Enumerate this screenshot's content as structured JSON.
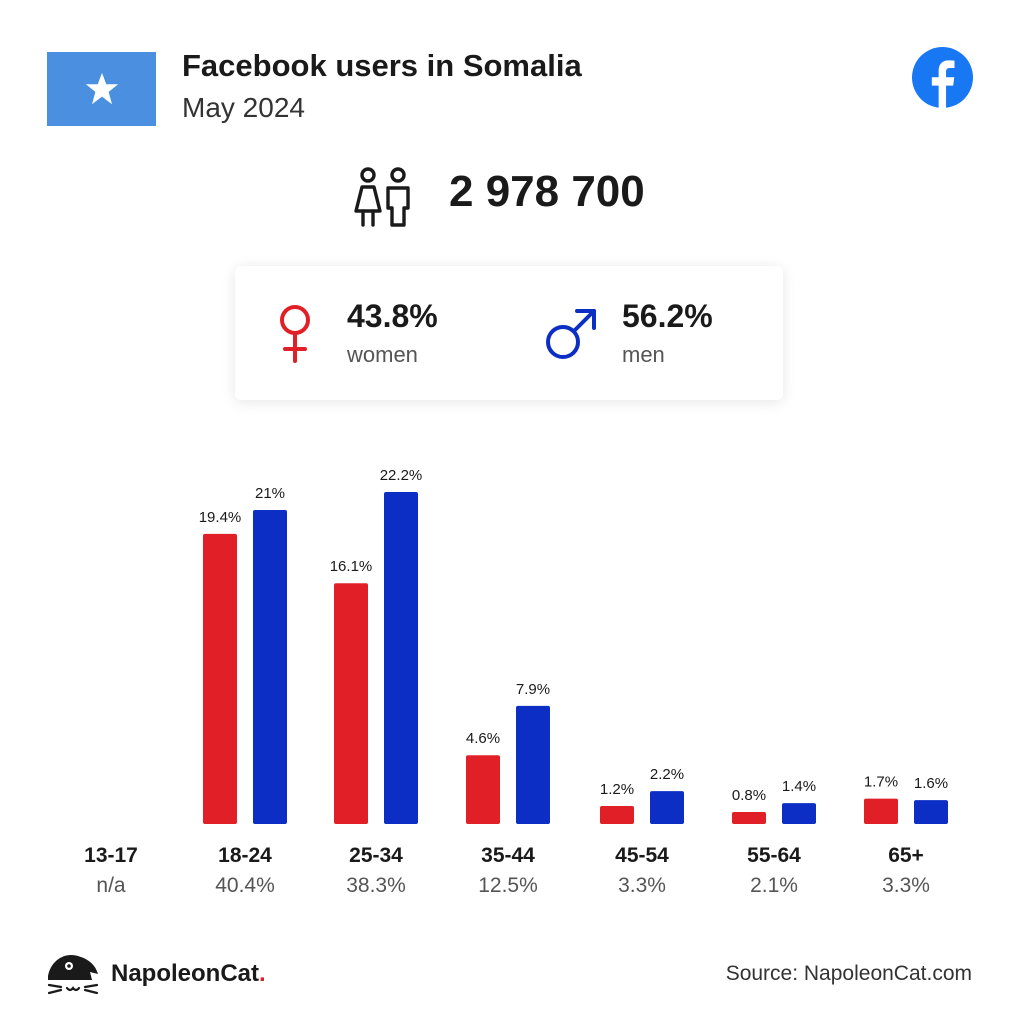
{
  "header": {
    "title": "Facebook users in Somalia",
    "subtitle": "May 2024",
    "flag_icon": "somalia-flag-icon",
    "logo_icon": "facebook-logo-icon"
  },
  "total": {
    "icon": "people-icon",
    "value": "2 978 700"
  },
  "gender": {
    "women": {
      "percent": "43.8%",
      "label": "women",
      "icon": "female-icon",
      "color": "#e02026"
    },
    "men": {
      "percent": "56.2%",
      "label": "men",
      "icon": "male-icon",
      "color": "#0d2ec4"
    }
  },
  "chart_data": {
    "type": "bar",
    "categories": [
      "13-17",
      "18-24",
      "25-34",
      "35-44",
      "45-54",
      "55-64",
      "65+"
    ],
    "category_totals": [
      "n/a",
      "40.4%",
      "38.3%",
      "12.5%",
      "3.3%",
      "2.1%",
      "3.3%"
    ],
    "series": [
      {
        "color": "#e02026",
        "values": [
          null,
          19.4,
          16.1,
          4.6,
          1.2,
          0.8,
          1.7
        ],
        "labels": [
          "",
          "19.4%",
          "16.1%",
          "4.6%",
          "1.2%",
          "0.8%",
          "1.7%"
        ]
      },
      {
        "color": "#0d2ec4",
        "values": [
          null,
          21,
          22.2,
          7.9,
          2.2,
          1.4,
          1.6
        ],
        "labels": [
          "",
          "21%",
          "22.2%",
          "7.9%",
          "2.2%",
          "1.4%",
          "1.6%"
        ]
      }
    ],
    "ylim": [
      0,
      22.2
    ],
    "grid": false
  },
  "footer": {
    "brand_name": "NapoleonCat",
    "brand_dot": ".",
    "brand_icon": "napoleoncat-logo-icon",
    "source": "Source: NapoleonCat.com"
  }
}
